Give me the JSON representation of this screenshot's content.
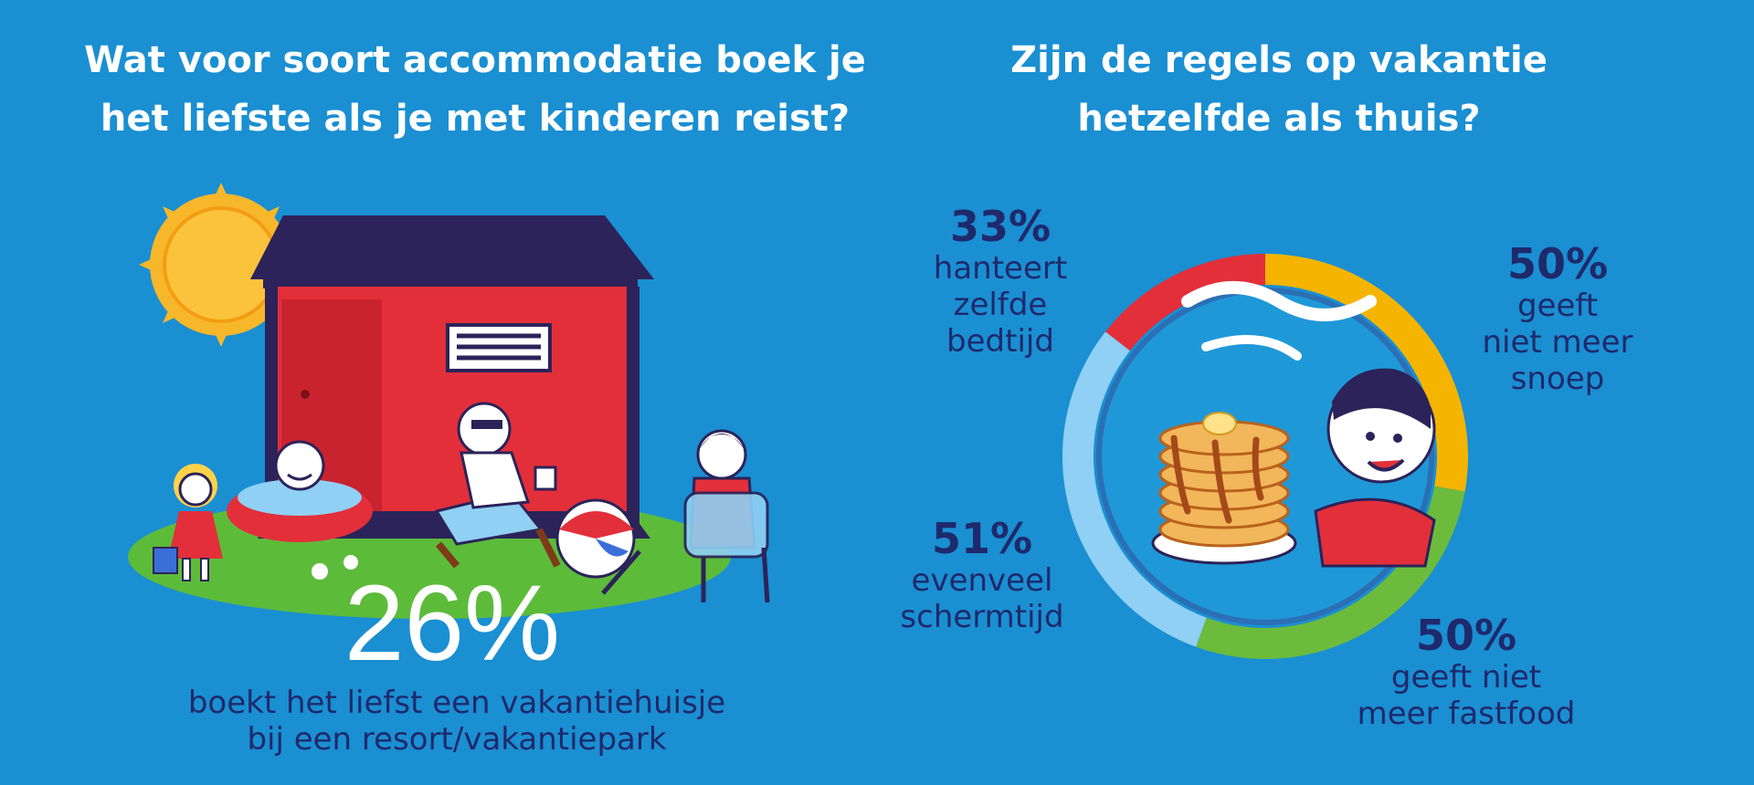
{
  "left": {
    "title": "Wat voor soort accommodatie boek je\nhet liefste als je met kinderen reist?",
    "highlight_value": "26%",
    "highlight_text": "boekt het liefst een vakantiehuisje\nbij een resort/vakantiepark"
  },
  "right": {
    "title": "Zijn de regels op vakantie\nhetzelfde als thuis?"
  },
  "chart_data": {
    "type": "pie",
    "style": "donut",
    "segments": [
      {
        "value": 33,
        "value_label": "33%",
        "label": "hanteert\nzelfde\nbedtijd",
        "color": "#e32f3a"
      },
      {
        "value": 50,
        "value_label": "50%",
        "label": "geeft\nniet meer\nsnoep",
        "color": "#f4b400"
      },
      {
        "value": 50,
        "value_label": "50%",
        "label": "geeft niet\nmeer fastfood",
        "color": "#6cbb3c"
      },
      {
        "value": 51,
        "value_label": "51%",
        "label": "evenveel\nschermtijd",
        "color": "#8fd0f4"
      }
    ]
  },
  "colors": {
    "background": "#1a8fd2",
    "navy": "#1e2a6b",
    "white": "#ffffff",
    "house_red": "#e32f3a",
    "roof": "#2b2359",
    "sun": "#f7b72a",
    "grass": "#5dbb3a"
  },
  "icons": [
    "sun-icon",
    "cabin-illustration",
    "family-illustration",
    "pancake-boy-illustration"
  ]
}
